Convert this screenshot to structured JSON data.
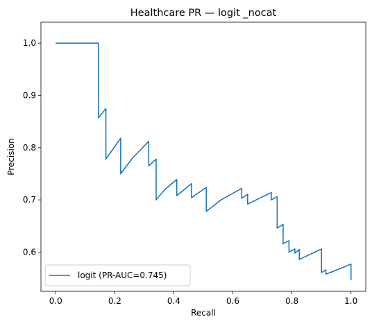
{
  "chart_data": {
    "type": "line",
    "title": "Healthcare PR — logit _nocat",
    "xlabel": "Recall",
    "ylabel": "Precision",
    "xlim": [
      -0.05,
      1.05
    ],
    "ylim": [
      0.525,
      1.04
    ],
    "grid": false,
    "legend_position": "lower-left",
    "xticks": [
      0.0,
      0.2,
      0.4,
      0.6,
      0.8,
      1.0
    ],
    "xtick_labels": [
      "0.0",
      "0.2",
      "0.4",
      "0.6",
      "0.8",
      "1.0"
    ],
    "yticks": [
      0.6,
      0.7,
      0.8,
      0.9,
      1.0
    ],
    "ytick_labels": [
      "0.6",
      "0.7",
      "0.8",
      "0.9",
      "1.0"
    ],
    "series": [
      {
        "name": "logit (PR-AUC=0.745)",
        "color": "#1f77b4",
        "points": [
          [
            0.0,
            1.0
          ],
          [
            0.145,
            1.0
          ],
          [
            0.145,
            0.857
          ],
          [
            0.17,
            0.875
          ],
          [
            0.17,
            0.778
          ],
          [
            0.22,
            0.818
          ],
          [
            0.22,
            0.75
          ],
          [
            0.26,
            0.78
          ],
          [
            0.315,
            0.812
          ],
          [
            0.315,
            0.765
          ],
          [
            0.34,
            0.778
          ],
          [
            0.34,
            0.7
          ],
          [
            0.37,
            0.72
          ],
          [
            0.41,
            0.739
          ],
          [
            0.41,
            0.708
          ],
          [
            0.46,
            0.731
          ],
          [
            0.46,
            0.704
          ],
          [
            0.51,
            0.724
          ],
          [
            0.51,
            0.678
          ],
          [
            0.56,
            0.7
          ],
          [
            0.63,
            0.722
          ],
          [
            0.63,
            0.703
          ],
          [
            0.65,
            0.711
          ],
          [
            0.65,
            0.692
          ],
          [
            0.73,
            0.714
          ],
          [
            0.73,
            0.7
          ],
          [
            0.75,
            0.706
          ],
          [
            0.75,
            0.646
          ],
          [
            0.77,
            0.653
          ],
          [
            0.77,
            0.616
          ],
          [
            0.79,
            0.622
          ],
          [
            0.79,
            0.6
          ],
          [
            0.81,
            0.606
          ],
          [
            0.81,
            0.598
          ],
          [
            0.825,
            0.605
          ],
          [
            0.825,
            0.586
          ],
          [
            0.9,
            0.606
          ],
          [
            0.9,
            0.561
          ],
          [
            0.915,
            0.566
          ],
          [
            0.915,
            0.558
          ],
          [
            0.93,
            0.561
          ],
          [
            1.0,
            0.577
          ],
          [
            1.0,
            0.546
          ]
        ]
      }
    ]
  }
}
